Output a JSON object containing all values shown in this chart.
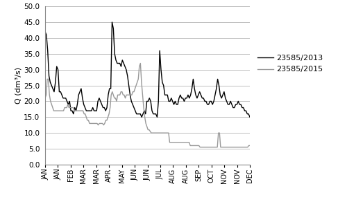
{
  "ylabel": "Q (dm³/s)",
  "ylim": [
    0.0,
    50.0
  ],
  "yticks": [
    0.0,
    5.0,
    10.0,
    15.0,
    20.0,
    25.0,
    30.0,
    35.0,
    40.0,
    45.0,
    50.0
  ],
  "xtick_labels": [
    "JAN",
    "JAN",
    "FEB",
    "MAR",
    "MAR",
    "APR",
    "MAY",
    "JUN",
    "JUN",
    "JUL",
    "AUG",
    "AUG",
    "SEP",
    "OCT",
    "NOV",
    "NOV",
    "DEC"
  ],
  "legend_labels": [
    "23585/2013",
    "23585/2015"
  ],
  "line_color_2013": "#000000",
  "line_color_2015": "#999999",
  "background_color": "#ffffff",
  "grid_color": "#c0c0c0",
  "series_2013": [
    42,
    41,
    36,
    28,
    26,
    25,
    24,
    23,
    26,
    31,
    30,
    23,
    23,
    22,
    21,
    21,
    21,
    20,
    19,
    20,
    17,
    17,
    16,
    18,
    17,
    19,
    22,
    23,
    24,
    21,
    19,
    18,
    17,
    17,
    17,
    17,
    17,
    18,
    17,
    17,
    17,
    20,
    21,
    20,
    19,
    18,
    18,
    17,
    18,
    22,
    24,
    24,
    45,
    43,
    35,
    33,
    32,
    32,
    32,
    31,
    33,
    32,
    31,
    30,
    28,
    25,
    22,
    20,
    19,
    18,
    17,
    16,
    16,
    16,
    16,
    15,
    16,
    17,
    16,
    20,
    20,
    21,
    20,
    17,
    16,
    16,
    16,
    15,
    20,
    36,
    30,
    26,
    25,
    22,
    22,
    22,
    20,
    20,
    21,
    20,
    19,
    20,
    19,
    19,
    21,
    22,
    21,
    21,
    20,
    21,
    21,
    22,
    21,
    22,
    24,
    27,
    24,
    22,
    21,
    22,
    23,
    22,
    21,
    21,
    20,
    20,
    19,
    19,
    20,
    20,
    19,
    20,
    22,
    24,
    27,
    25,
    22,
    21,
    22,
    23,
    21,
    20,
    19,
    19,
    20,
    19,
    18,
    18,
    19,
    19,
    20,
    19,
    19,
    18,
    18,
    17,
    17,
    16,
    16,
    15
  ],
  "series_2015": [
    21,
    22,
    27,
    27,
    22,
    20,
    19,
    18,
    17,
    17,
    17,
    17,
    17,
    17,
    17,
    17,
    17,
    17,
    18,
    18,
    18,
    19,
    18,
    18,
    18,
    18,
    18,
    17,
    17,
    17,
    17,
    17,
    17,
    17,
    17,
    17,
    16,
    16,
    15,
    14,
    14,
    13,
    13,
    13,
    13,
    13,
    13,
    13,
    13,
    12.5,
    13,
    13,
    13,
    13,
    12.5,
    13,
    14,
    14,
    15,
    16,
    18,
    22,
    23,
    22,
    21,
    21,
    20,
    22,
    22,
    22,
    23,
    23,
    22,
    22,
    21,
    22,
    22,
    22,
    22,
    22,
    22,
    23,
    23,
    24,
    25,
    26,
    27,
    31,
    32,
    26,
    22,
    18,
    15,
    13,
    12,
    11,
    11,
    10.5,
    10,
    10,
    10,
    10,
    10,
    10,
    10,
    10,
    10,
    10,
    10,
    10,
    10,
    10,
    10,
    10,
    10,
    7,
    7,
    7,
    7,
    7,
    7,
    7,
    7,
    7,
    7,
    7,
    7,
    7,
    7,
    7,
    7,
    7,
    7,
    7,
    6,
    6,
    6,
    6,
    6,
    6,
    6,
    6,
    6,
    5.5,
    5.5,
    5.5,
    5.5,
    5.5,
    5.5,
    5.5,
    5.5,
    5.5,
    5.5,
    5.5,
    5.5,
    5.5,
    5.5,
    5.5,
    5.5,
    5.5,
    10,
    10,
    5.5,
    5.5,
    5.5,
    5.5,
    5.5,
    5.5,
    5.5,
    5.5,
    5.5,
    5.5,
    5.5,
    5.5,
    5.5,
    5.5,
    5.5,
    5.5,
    5.5,
    5.5,
    5.5,
    5.5,
    5.5,
    5.5,
    5.5,
    5.5,
    5.5,
    5.5,
    6,
    6
  ]
}
